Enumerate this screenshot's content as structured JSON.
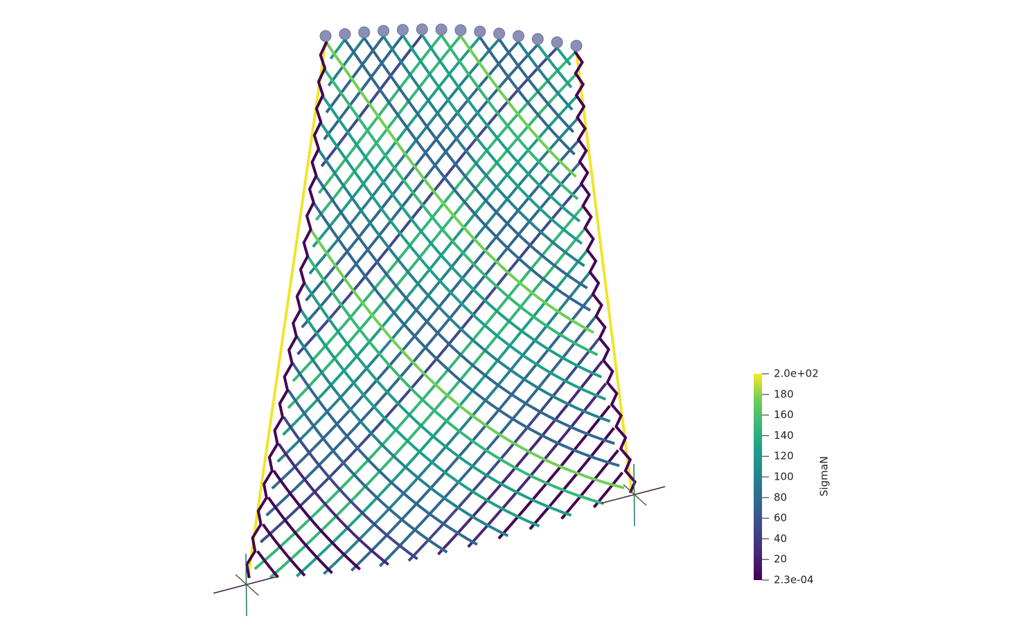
{
  "colorbar": {
    "title": "SigmaN",
    "range": [
      0.00023,
      200
    ],
    "ticks": [
      {
        "value": 200,
        "label": "2.0e+02"
      },
      180,
      160,
      140,
      120,
      100,
      80,
      60,
      40,
      20,
      {
        "value": 0.00023,
        "label": "2.3e-04"
      }
    ]
  }
}
